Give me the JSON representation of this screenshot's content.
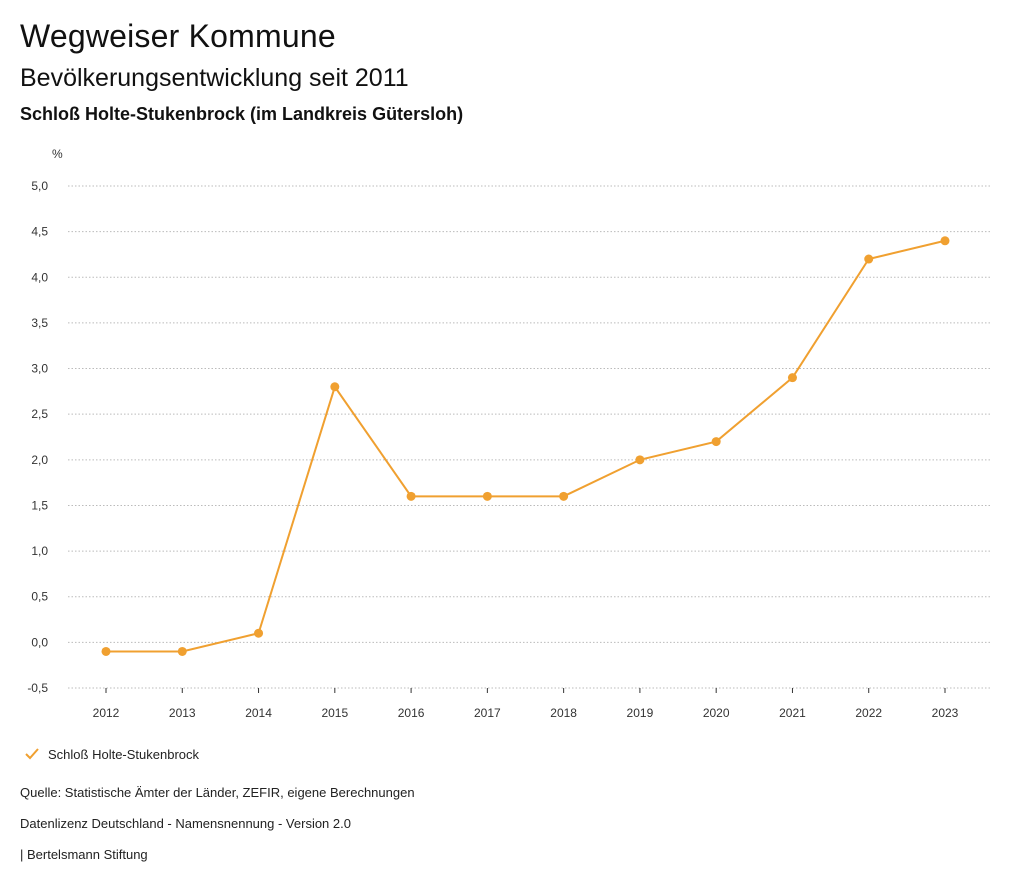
{
  "header": {
    "title": "Wegweiser Kommune",
    "subtitle": "Bevölkerungsentwicklung seit 2011",
    "region": "Schloß Holte-Stukenbrock (im Landkreis Gütersloh)"
  },
  "colors": {
    "series": "#f0a030",
    "grid": "#bbbbbb",
    "axis": "#333333"
  },
  "chart_data": {
    "type": "line",
    "title": "Bevölkerungsentwicklung seit 2011",
    "ylabel": "%",
    "xlabel": "",
    "ylim": [
      -0.5,
      5.0
    ],
    "yticks": [
      -0.5,
      0.0,
      0.5,
      1.0,
      1.5,
      2.0,
      2.5,
      3.0,
      3.5,
      4.0,
      4.5,
      5.0
    ],
    "ytick_labels": [
      "-0,5",
      "0,0",
      "0,5",
      "1,0",
      "1,5",
      "2,0",
      "2,5",
      "3,0",
      "3,5",
      "4,0",
      "4,5",
      "5,0"
    ],
    "categories": [
      "2012",
      "2013",
      "2014",
      "2015",
      "2016",
      "2017",
      "2018",
      "2019",
      "2020",
      "2021",
      "2022",
      "2023"
    ],
    "series": [
      {
        "name": "Schloß Holte-Stukenbrock",
        "values": [
          -0.1,
          -0.1,
          0.1,
          2.8,
          1.6,
          1.6,
          1.6,
          2.0,
          2.2,
          2.9,
          4.2,
          4.4
        ]
      }
    ],
    "grid": true,
    "legend": "bottom-left"
  },
  "legend": {
    "label": "Schloß Holte-Stukenbrock"
  },
  "footer": {
    "source": "Quelle: Statistische Ämter der Länder, ZEFIR, eigene Berechnungen",
    "license": "Datenlizenz Deutschland - Namensnennung - Version 2.0",
    "publisher": "| Bertelsmann Stiftung"
  }
}
